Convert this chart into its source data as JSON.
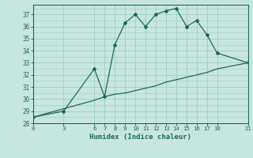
{
  "title": "",
  "xlabel": "Humidex (Indice chaleur)",
  "background_color": "#c8e6e0",
  "line_color": "#1a6b5a",
  "xlim": [
    0,
    21
  ],
  "ylim": [
    28,
    37.8
  ],
  "xticks": [
    0,
    3,
    6,
    7,
    8,
    9,
    10,
    11,
    12,
    13,
    14,
    15,
    16,
    17,
    18,
    21
  ],
  "yticks": [
    28,
    29,
    30,
    31,
    32,
    33,
    34,
    35,
    36,
    37
  ],
  "curve1_x": [
    0,
    3,
    6,
    7,
    8,
    9,
    10,
    11,
    12,
    13,
    14,
    15,
    16,
    17,
    18,
    21
  ],
  "curve1_y": [
    28.5,
    29.0,
    32.5,
    30.2,
    34.5,
    36.3,
    37.0,
    36.0,
    37.0,
    37.3,
    37.5,
    36.0,
    36.5,
    35.3,
    33.8,
    33.0
  ],
  "curve2_x": [
    0,
    3,
    6,
    7,
    8,
    9,
    10,
    11,
    12,
    13,
    14,
    15,
    16,
    17,
    18,
    21
  ],
  "curve2_y": [
    28.5,
    29.2,
    29.9,
    30.2,
    30.4,
    30.5,
    30.7,
    30.9,
    31.1,
    31.4,
    31.6,
    31.8,
    32.0,
    32.2,
    32.5,
    33.0
  ],
  "grid_color": "#9acfc5"
}
